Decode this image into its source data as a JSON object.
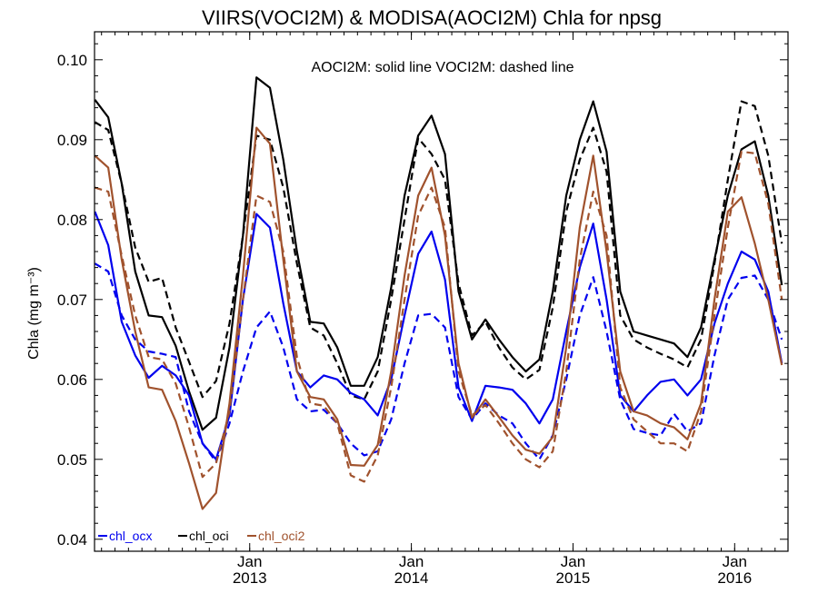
{
  "chart_data": {
    "type": "line",
    "title": "VIIRS(VOCI2M) & MODISA(AOCI2M)  Chla for npsg",
    "annotation": "AOCI2M: solid line   VOCI2M: dashed line",
    "ylabel": "Chla (mg m⁻³)",
    "xlabel": "",
    "ylim": [
      0.0385,
      0.1035
    ],
    "xlim": [
      2012.04,
      2016.33
    ],
    "yticks": [
      0.04,
      0.05,
      0.06,
      0.07,
      0.08,
      0.09,
      0.1
    ],
    "ytick_labels": [
      "0.04",
      "0.05",
      "0.06",
      "0.07",
      "0.08",
      "0.09",
      "0.10"
    ],
    "xticks": [
      {
        "x": 2013.0,
        "month": "Jan",
        "year": "2013"
      },
      {
        "x": 2014.0,
        "month": "Jan",
        "year": "2014"
      },
      {
        "x": 2015.0,
        "month": "Jan",
        "year": "2015"
      },
      {
        "x": 2016.0,
        "month": "Jan",
        "year": "2016"
      }
    ],
    "x": [
      2012.042,
      2012.125,
      2012.208,
      2012.292,
      2012.375,
      2012.458,
      2012.542,
      2012.625,
      2012.708,
      2012.792,
      2012.875,
      2012.958,
      2013.042,
      2013.125,
      2013.208,
      2013.292,
      2013.375,
      2013.458,
      2013.542,
      2013.625,
      2013.708,
      2013.792,
      2013.875,
      2013.958,
      2014.042,
      2014.125,
      2014.208,
      2014.292,
      2014.375,
      2014.458,
      2014.542,
      2014.625,
      2014.708,
      2014.792,
      2014.875,
      2014.958,
      2015.042,
      2015.125,
      2015.208,
      2015.292,
      2015.375,
      2015.458,
      2015.542,
      2015.625,
      2015.708,
      2015.792,
      2015.875,
      2015.958,
      2016.042,
      2016.125,
      2016.208,
      2016.292
    ],
    "series": [
      {
        "name": "chl_oci",
        "color": "#000000",
        "dash": false,
        "values": [
          0.095,
          0.0928,
          0.0845,
          0.0735,
          0.068,
          0.0678,
          0.0642,
          0.0585,
          0.0537,
          0.0552,
          0.064,
          0.078,
          0.0978,
          0.0965,
          0.0875,
          0.076,
          0.0672,
          0.067,
          0.064,
          0.0592,
          0.0592,
          0.0628,
          0.0715,
          0.083,
          0.0905,
          0.093,
          0.0882,
          0.071,
          0.065,
          0.0675,
          0.065,
          0.0628,
          0.061,
          0.0625,
          0.071,
          0.083,
          0.09,
          0.0948,
          0.0885,
          0.071,
          0.066,
          0.0655,
          0.065,
          0.0645,
          0.0628,
          0.0665,
          0.075,
          0.083,
          0.0888,
          0.0898,
          0.083,
          0.0718
        ]
      },
      {
        "name": "chl_oci",
        "color": "#000000",
        "dash": true,
        "values": [
          0.0922,
          0.0912,
          0.0845,
          0.0765,
          0.0722,
          0.0727,
          0.0665,
          0.0622,
          0.0578,
          0.0598,
          0.067,
          0.078,
          0.0905,
          0.09,
          0.084,
          0.0745,
          0.0665,
          0.0655,
          0.062,
          0.058,
          0.0575,
          0.061,
          0.07,
          0.08,
          0.0902,
          0.0882,
          0.085,
          0.072,
          0.0655,
          0.0672,
          0.064,
          0.0615,
          0.06,
          0.0612,
          0.069,
          0.081,
          0.0875,
          0.0915,
          0.086,
          0.068,
          0.065,
          0.064,
          0.0632,
          0.0625,
          0.0615,
          0.065,
          0.0745,
          0.085,
          0.0948,
          0.0942,
          0.088,
          0.077
        ]
      },
      {
        "name": "chl_ocx",
        "color": "#0000ee",
        "dash": false,
        "values": [
          0.081,
          0.0768,
          0.0672,
          0.063,
          0.0602,
          0.0617,
          0.0605,
          0.058,
          0.052,
          0.05,
          0.0555,
          0.07,
          0.0807,
          0.079,
          0.0695,
          0.061,
          0.059,
          0.0605,
          0.06,
          0.0583,
          0.0575,
          0.0555,
          0.06,
          0.068,
          0.0757,
          0.0785,
          0.0725,
          0.059,
          0.0548,
          0.0592,
          0.059,
          0.0587,
          0.057,
          0.0545,
          0.0575,
          0.066,
          0.074,
          0.0795,
          0.07,
          0.058,
          0.056,
          0.058,
          0.0597,
          0.06,
          0.058,
          0.06,
          0.067,
          0.072,
          0.076,
          0.075,
          0.071,
          0.062
        ]
      },
      {
        "name": "chl_ocx",
        "color": "#0000ee",
        "dash": true,
        "values": [
          0.0745,
          0.0735,
          0.068,
          0.065,
          0.0635,
          0.0632,
          0.0628,
          0.056,
          0.052,
          0.0497,
          0.0545,
          0.061,
          0.0665,
          0.0685,
          0.064,
          0.0575,
          0.056,
          0.0562,
          0.0545,
          0.052,
          0.0505,
          0.051,
          0.055,
          0.062,
          0.068,
          0.0682,
          0.0665,
          0.0578,
          0.055,
          0.057,
          0.0555,
          0.0545,
          0.052,
          0.05,
          0.053,
          0.06,
          0.068,
          0.0728,
          0.066,
          0.0575,
          0.0538,
          0.0533,
          0.053,
          0.0557,
          0.0535,
          0.0545,
          0.063,
          0.07,
          0.0727,
          0.073,
          0.07,
          0.065
        ]
      },
      {
        "name": "chl_oci2",
        "color": "#a0522d",
        "dash": false,
        "values": [
          0.088,
          0.0865,
          0.075,
          0.066,
          0.059,
          0.0587,
          0.0548,
          0.0495,
          0.0438,
          0.0458,
          0.057,
          0.073,
          0.0915,
          0.0895,
          0.075,
          0.061,
          0.0578,
          0.0575,
          0.055,
          0.0493,
          0.0492,
          0.0518,
          0.061,
          0.073,
          0.083,
          0.0865,
          0.078,
          0.062,
          0.0552,
          0.0575,
          0.0553,
          0.053,
          0.0512,
          0.0507,
          0.0528,
          0.064,
          0.079,
          0.088,
          0.076,
          0.061,
          0.056,
          0.0555,
          0.0545,
          0.054,
          0.0525,
          0.057,
          0.07,
          0.081,
          0.0828,
          0.077,
          0.07,
          0.0618
        ]
      },
      {
        "name": "chl_oci2",
        "color": "#a0522d",
        "dash": true,
        "values": [
          0.084,
          0.0835,
          0.0755,
          0.068,
          0.0628,
          0.0625,
          0.0595,
          0.054,
          0.0478,
          0.0495,
          0.056,
          0.07,
          0.083,
          0.0822,
          0.076,
          0.0628,
          0.057,
          0.0567,
          0.0545,
          0.048,
          0.0472,
          0.0505,
          0.059,
          0.07,
          0.0805,
          0.084,
          0.079,
          0.061,
          0.0555,
          0.0568,
          0.0545,
          0.052,
          0.05,
          0.049,
          0.051,
          0.061,
          0.075,
          0.0835,
          0.078,
          0.059,
          0.055,
          0.0535,
          0.052,
          0.052,
          0.051,
          0.056,
          0.068,
          0.079,
          0.0885,
          0.0883,
          0.082,
          0.07
        ]
      }
    ],
    "legend": [
      {
        "label": "chl_ocx",
        "color": "#0000ee"
      },
      {
        "label": "chl_oci",
        "color": "#000000"
      },
      {
        "label": "chl_oci2",
        "color": "#a0522d"
      }
    ],
    "legend_placement": "bottom-left",
    "grid": false
  }
}
